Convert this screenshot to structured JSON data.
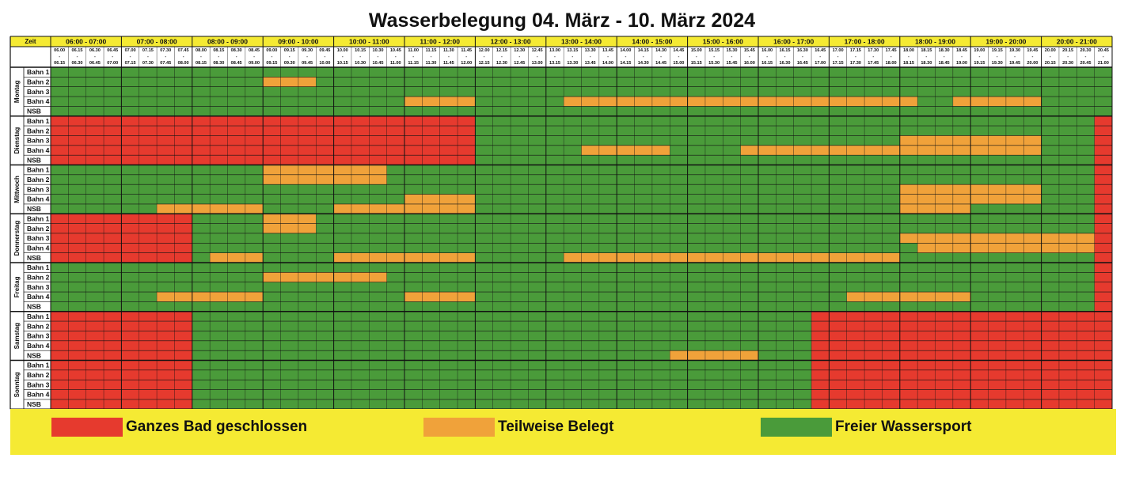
{
  "title": "Wasserbelegung 04. März - 10. März 2024",
  "header": {
    "zeit_label": "Zeit",
    "hours": [
      "06:00 - 07:00",
      "07:00 - 08:00",
      "08:00 - 09:00",
      "09:00 - 10:00",
      "10:00 - 11:00",
      "11:00 - 12:00",
      "12:00 - 13:00",
      "13:00 - 14:00",
      "14:00 - 15:00",
      "15:00 - 16:00",
      "16:00 - 17:00",
      "17:00 - 18:00",
      "18:00 - 19:00",
      "19:00 - 20:00",
      "20:00 - 21:00"
    ],
    "slot_start_times": [
      "06.00",
      "06.15",
      "06.30",
      "06.45",
      "07.00",
      "07.15",
      "07.30",
      "07.45",
      "08.00",
      "08.15",
      "08.30",
      "08.45",
      "09.00",
      "09.15",
      "09.30",
      "09.45",
      "10.00",
      "10.15",
      "10.30",
      "10.45",
      "11.00",
      "11.15",
      "11.30",
      "11.45",
      "12.00",
      "12.15",
      "12.30",
      "12.45",
      "13.00",
      "13.15",
      "13.30",
      "13.45",
      "14.00",
      "14.15",
      "14.30",
      "14.45",
      "15.00",
      "15.15",
      "15.30",
      "15.45",
      "16.00",
      "16.15",
      "16.30",
      "16.45",
      "17.00",
      "17.15",
      "17.30",
      "17.45",
      "18.00",
      "18.15",
      "18.30",
      "18.45",
      "19.00",
      "19.15",
      "19.30",
      "19.45",
      "20.00",
      "20.15",
      "20.30",
      "20.45"
    ],
    "slot_end_times": [
      "06.15",
      "06.30",
      "06.45",
      "07.00",
      "07.15",
      "07.30",
      "07.45",
      "08.00",
      "08.15",
      "08.30",
      "08.45",
      "09.00",
      "09.15",
      "09.30",
      "09.45",
      "10.00",
      "10.15",
      "10.30",
      "10.45",
      "11.00",
      "11.15",
      "11.30",
      "11.45",
      "12.00",
      "12.15",
      "12.30",
      "12.45",
      "13.00",
      "13.15",
      "13.30",
      "13.45",
      "14.00",
      "14.15",
      "14.30",
      "14.45",
      "15.00",
      "15.15",
      "15.30",
      "15.45",
      "16.00",
      "16.15",
      "16.30",
      "16.45",
      "17.00",
      "17.15",
      "17.30",
      "17.45",
      "18.00",
      "18.15",
      "18.30",
      "18.45",
      "19.00",
      "19.15",
      "19.30",
      "19.45",
      "20.00",
      "20.15",
      "20.30",
      "20.45",
      "21.00"
    ]
  },
  "lanes": [
    "Bahn 1",
    "Bahn 2",
    "Bahn 3",
    "Bahn 4",
    "NSB"
  ],
  "status_colors": {
    "R": "#e63a2e",
    "O": "#f0a23a",
    "G": "#4a9b3a"
  },
  "days": [
    {
      "name": "Montag",
      "rows": [
        "GGGGGGGGGGGGGGGGGGGGGGGGGGGGGGGGGGGGGGGGGGGGGGGGGGGGGGGGGGGG",
        "GGGGGGGGGGGGOOOGGGGGGGGGGGGGGGGGGGGGGGGGGGGGGGGGGGGGGGGGGGGG",
        "GGGGGGGGGGGGGGGGGGGGGGGGGGGGGGGGGGGGGGGGGGGGGGGGGGGGGGGGGGGG",
        "GGGGGGGGGGGGGGGGGGGGOOOOGGGGGOOOOOOOOOOOOOOOOOOOOGGOOOOOGGGG",
        "GGGGGGGGGGGGGGGGGGGGGGGGGGGGGGGGGGGGGGGGGGGGGGGGGGGGGGGGGGGG"
      ]
    },
    {
      "name": "Dienstag",
      "rows": [
        "RRRRRRRRRRRRRRRRRRRRRRRRGGGGGGGGGGGGGGGGGGGGGGGGGGGGGGGGGGGR",
        "RRRRRRRRRRRRRRRRRRRRRRRRGGGGGGGGGGGGGGGGGGGGGGGGGGGGGGGGGGGR",
        "RRRRRRRRRRRRRRRRRRRRRRRRGGGGGGGGGGGGGGGGGGGGGGGGOOOOOOOOGGGR",
        "RRRRRRRRRRRRRRRRRRRRRRRRGGGGGGOOOOOGGGGOOOOOOOOOOOOOOOOOGGGR",
        "RRRRRRRRRRRRRRRRRRRRRRRRGGGGGGGGGGGGGGGGGGGGGGGGGGGGGGGGGGGR"
      ]
    },
    {
      "name": "Mittwoch",
      "rows": [
        "GGGGGGGGGGGGOOOOOOOGGGGGGGGGGGGGGGGGGGGGGGGGGGGGGGGGGGGGGGGR",
        "GGGGGGGGGGGGOOOOOOOGGGGGGGGGGGGGGGGGGGGGGGGGGGGGGGGGGGGGGGGR",
        "GGGGGGGGGGGGGGGGGGGGGGGGGGGGGGGGGGGGGGGGGGGGGGGGOOOOOOOOGGGR",
        "GGGGGGGGGGGGGGGGGGGGOOOOGGGGGGGGGGGGGGGGGGGGGGGGOOOOOOOOGGGR",
        "GGGGGGOOOOOOGGGGOOOOOOOOGGGGGGGGGGGGGGGGGGGGGGGGOOOOGGGGGGGR"
      ]
    },
    {
      "name": "Donnerstag",
      "rows": [
        "RRRRRRRRGGGGOOOGGGGGGGGGGGGGGGGGGGGGGGGGGGGGGGGGGGGGGGGGGGGR",
        "RRRRRRRRGGGGOOOGGGGGGGGGGGGGGGGGGGGGGGGGGGGGGGGGGGGGGGGGGGGR",
        "RRRRRRRRGGGGGGGGGGGGGGGGGGGGGGGGGGGGGGGGGGGGGGGGOOOOOOOOOOOR",
        "RRRRRRRRGGGGGGGGGGGGGGGGGGGGGGGGGGGGGGGGGGGGGGGGGOOOOOOOOOOR",
        "RRRRRRRRGOOOGGGGOOOOOOOOGGGGGOOOOOOOOOOOOOOOOOOOGGGGGGGGGGGR"
      ]
    },
    {
      "name": "Freitag",
      "rows": [
        "GGGGGGGGGGGGGGGGGGGGGGGGGGGGGGGGGGGGGGGGGGGGGGGGGGGGGGGGGGGR",
        "GGGGGGGGGGGGOOOOOOOGGGGGGGGGGGGGGGGGGGGGGGGGGGGGGGGGGGGGGGGR",
        "GGGGGGGGGGGGGGGGGGGGGGGGGGGGGGGGGGGGGGGGGGGGGGGGGGGGGGGGGGGR",
        "GGGGGGOOOOOOGGGGGGGGOOOOGGGGGGGGGGGGGGGGGGGGGOOOOOOOGGGGGGGR",
        "GGGGGGGGGGGGGGGGGGGGGGGGGGGGGGGGGGGGGGGGGGGGGGGGGGGGGGGGGGGR"
      ]
    },
    {
      "name": "Samstag",
      "rows": [
        "RRRRRRRRGGGGGGGGGGGGGGGGGGGGGGGGGGGGGGGGGGGRRRRRRRRRRRRRRRRR",
        "RRRRRRRRGGGGGGGGGGGGGGGGGGGGGGGGGGGGGGGGGGGRRRRRRRRRRRRRRRRR",
        "RRRRRRRRGGGGGGGGGGGGGGGGGGGGGGGGGGGGGGGGGGGRRRRRRRRRRRRRRRRR",
        "RRRRRRRRGGGGGGGGGGGGGGGGGGGGGGGGGGGGGGGGGGGRRRRRRRRRRRRRRRRR",
        "RRRRRRRRGGGGGGGGGGGGGGGGGGGGGGGGGGGOOOOOGGGRRRRRRRRRRRRRRRRR"
      ]
    },
    {
      "name": "Sonntag",
      "rows": [
        "RRRRRRRRGGGGGGGGGGGGGGGGGGGGGGGGGGGGGGGGGGGRRRRRRRRRRRRRRRRR",
        "RRRRRRRRGGGGGGGGGGGGGGGGGGGGGGGGGGGGGGGGGGGRRRRRRRRRRRRRRRRR",
        "RRRRRRRRGGGGGGGGGGGGGGGGGGGGGGGGGGGGGGGGGGGRRRRRRRRRRRRRRRRR",
        "RRRRRRRRGGGGGGGGGGGGGGGGGGGGGGGGGGGGGGGGGGGRRRRRRRRRRRRRRRRR",
        "RRRRRRRRGGGGGGGGGGGGGGGGGGGGGGGGGGGGGGGGGGGRRRRRRRRRRRRRRRRR"
      ]
    }
  ],
  "legend": [
    {
      "label": "Ganzes Bad geschlossen",
      "color": "#e63a2e"
    },
    {
      "label": "Teilweise Belegt",
      "color": "#f0a23a"
    },
    {
      "label": "Freier Wassersport",
      "color": "#4a9b3a"
    }
  ]
}
